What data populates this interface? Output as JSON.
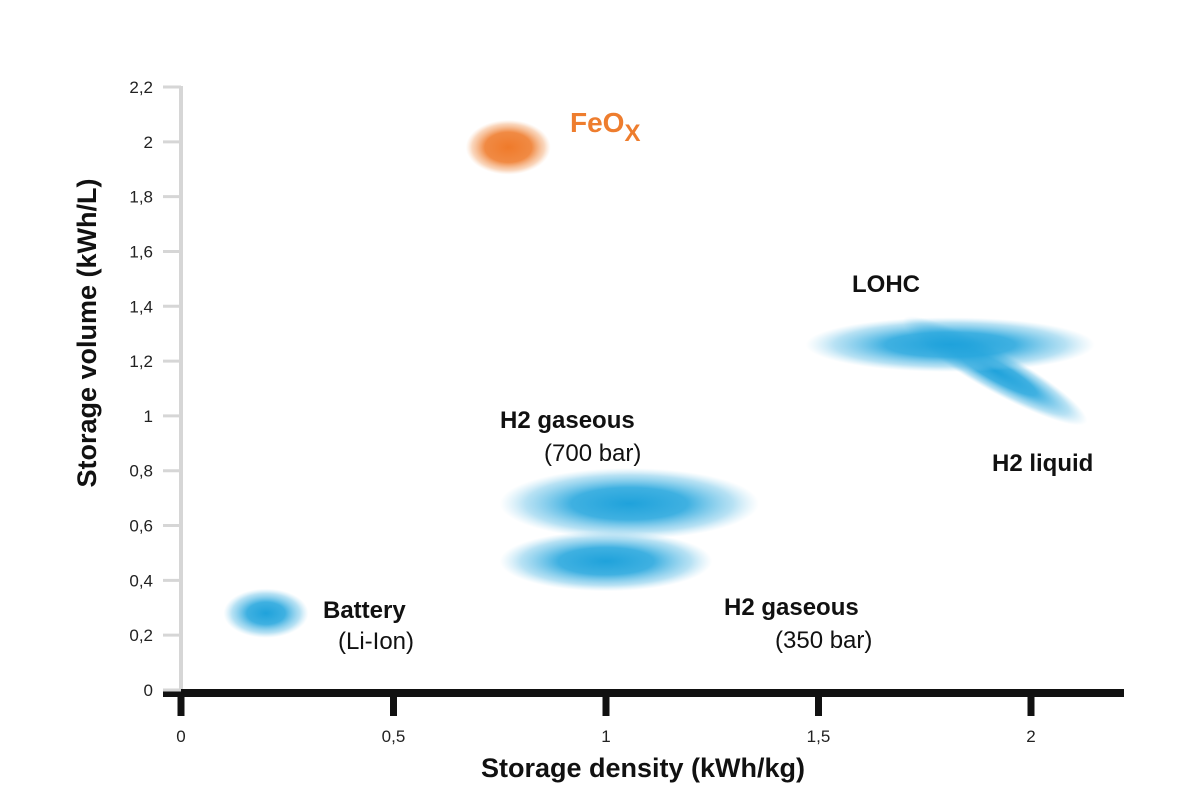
{
  "chart_data": {
    "type": "scatter",
    "title": "",
    "xlabel": "Storage density (kWh/kg)",
    "ylabel": "Storage volume (kWh/L)",
    "xlim": [
      0,
      2.2
    ],
    "ylim": [
      0,
      2.2
    ],
    "x_ticks": [
      "0",
      "0,5",
      "1",
      "1,5",
      "2"
    ],
    "x_tick_values": [
      0,
      0.5,
      1,
      1.5,
      2
    ],
    "y_ticks": [
      "0",
      "0,2",
      "0,4",
      "0,6",
      "0,8",
      "1",
      "1,2",
      "1,4",
      "1,6",
      "1,8",
      "2",
      "2,2"
    ],
    "y_tick_values": [
      0,
      0.2,
      0.4,
      0.6,
      0.8,
      1.0,
      1.2,
      1.4,
      1.6,
      1.8,
      2.0,
      2.2
    ],
    "grid": false,
    "series": [
      {
        "name": "Battery",
        "subtitle": "(Li-Ion)",
        "color": "#29a8dc",
        "x": 0.2,
        "y": 0.28,
        "x_range": [
          0.1,
          0.3
        ],
        "y_range": [
          0.19,
          0.37
        ]
      },
      {
        "name": "FeO",
        "subscript": "X",
        "color": "#ee7d2e",
        "x": 0.77,
        "y": 1.98,
        "x_range": [
          0.67,
          0.87
        ],
        "y_range": [
          1.88,
          2.08
        ]
      },
      {
        "name": "H2 gaseous",
        "subtitle": "(700 bar)",
        "color": "#29a8dc",
        "x": 1.05,
        "y": 0.68,
        "x_range": [
          0.75,
          1.36
        ],
        "y_range": [
          0.55,
          0.81
        ]
      },
      {
        "name": "H2 gaseous",
        "subtitle": "(350 bar)",
        "color": "#29a8dc",
        "x": 1.0,
        "y": 0.47,
        "x_range": [
          0.75,
          1.25
        ],
        "y_range": [
          0.36,
          0.58
        ]
      },
      {
        "name": "LOHC",
        "color": "#29a8dc",
        "x": 1.8,
        "y": 1.26,
        "x_range": [
          1.47,
          2.15
        ],
        "y_range": [
          1.16,
          1.36
        ]
      },
      {
        "name": "H2 liquid",
        "color": "#29a8dc",
        "x": 1.87,
        "y": 1.17,
        "x_range": [
          1.68,
          2.15
        ],
        "y_range": [
          0.96,
          1.37
        ]
      }
    ]
  }
}
